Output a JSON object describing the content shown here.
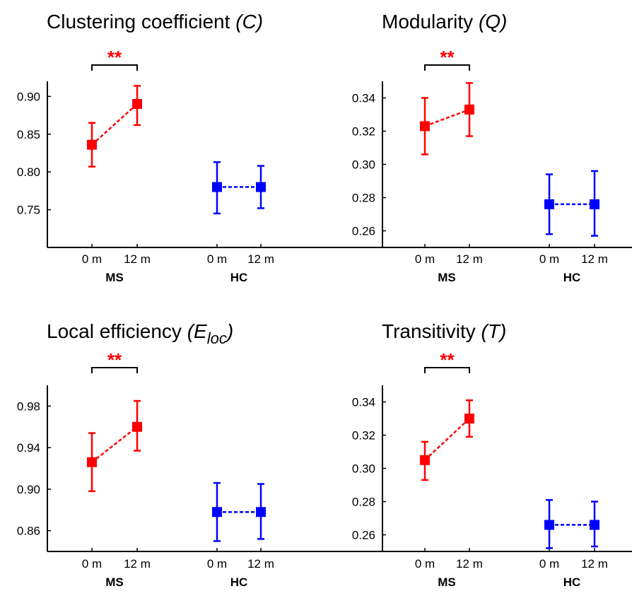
{
  "colors": {
    "ms": "#ff0000",
    "hc": "#0000ff",
    "axis": "#000000"
  },
  "chart_data": [
    {
      "type": "scatter",
      "title": "Clustering coefficient",
      "title_symbol": "(C)",
      "title_symbol_sub": "",
      "title_symbol_close": "",
      "categories": [
        "0 m",
        "12 m",
        "0 m",
        "12 m"
      ],
      "groups": [
        "MS",
        "HC"
      ],
      "ylim": [
        0.7,
        0.92
      ],
      "yticks": [
        0.75,
        0.8,
        0.85,
        0.9
      ],
      "ytick_labels": [
        "0.75",
        "0.80",
        "0.85",
        "0.90"
      ],
      "series": [
        {
          "name": "MS",
          "color": "#ff0000",
          "values": [
            0.836,
            0.89
          ],
          "err_low": [
            0.807,
            0.862
          ],
          "err_high": [
            0.865,
            0.914
          ]
        },
        {
          "name": "HC",
          "color": "#0000ff",
          "values": [
            0.78,
            0.78
          ],
          "err_low": [
            0.745,
            0.752
          ],
          "err_high": [
            0.813,
            0.808
          ]
        }
      ],
      "significance": {
        "label": "**",
        "between": [
          "0 m",
          "12 m"
        ],
        "group": "MS"
      }
    },
    {
      "type": "scatter",
      "title": "Modularity",
      "title_symbol": "(Q)",
      "title_symbol_sub": "",
      "title_symbol_close": "",
      "categories": [
        "0 m",
        "12 m",
        "0 m",
        "12 m"
      ],
      "groups": [
        "MS",
        "HC"
      ],
      "ylim": [
        0.25,
        0.35
      ],
      "yticks": [
        0.26,
        0.28,
        0.3,
        0.32,
        0.34
      ],
      "ytick_labels": [
        "0.26",
        "0.28",
        "0.30",
        "0.32",
        "0.34"
      ],
      "series": [
        {
          "name": "MS",
          "color": "#ff0000",
          "values": [
            0.323,
            0.333
          ],
          "err_low": [
            0.306,
            0.317
          ],
          "err_high": [
            0.34,
            0.349
          ]
        },
        {
          "name": "HC",
          "color": "#0000ff",
          "values": [
            0.276,
            0.276
          ],
          "err_low": [
            0.258,
            0.257
          ],
          "err_high": [
            0.294,
            0.296
          ]
        }
      ],
      "significance": {
        "label": "**",
        "between": [
          "0 m",
          "12 m"
        ],
        "group": "MS"
      }
    },
    {
      "type": "scatter",
      "title": "Local efficiency",
      "title_symbol": "(E",
      "title_symbol_sub": "loc",
      "title_symbol_close": ")",
      "categories": [
        "0 m",
        "12 m",
        "0 m",
        "12 m"
      ],
      "groups": [
        "MS",
        "HC"
      ],
      "ylim": [
        0.84,
        1.0
      ],
      "yticks": [
        0.86,
        0.9,
        0.94,
        0.98
      ],
      "ytick_labels": [
        "0.86",
        "0.90",
        "0.94",
        "0.98"
      ],
      "series": [
        {
          "name": "MS",
          "color": "#ff0000",
          "values": [
            0.926,
            0.96
          ],
          "err_low": [
            0.898,
            0.937
          ],
          "err_high": [
            0.954,
            0.985
          ]
        },
        {
          "name": "HC",
          "color": "#0000ff",
          "values": [
            0.878,
            0.878
          ],
          "err_low": [
            0.85,
            0.852
          ],
          "err_high": [
            0.906,
            0.905
          ]
        }
      ],
      "significance": {
        "label": "**",
        "between": [
          "0 m",
          "12 m"
        ],
        "group": "MS"
      }
    },
    {
      "type": "scatter",
      "title": "Transitivity",
      "title_symbol": "(T)",
      "title_symbol_sub": "",
      "title_symbol_close": "",
      "categories": [
        "0 m",
        "12 m",
        "0 m",
        "12 m"
      ],
      "groups": [
        "MS",
        "HC"
      ],
      "ylim": [
        0.25,
        0.35
      ],
      "yticks": [
        0.26,
        0.28,
        0.3,
        0.32,
        0.34
      ],
      "ytick_labels": [
        "0.26",
        "0.28",
        "0.30",
        "0.32",
        "0.34"
      ],
      "series": [
        {
          "name": "MS",
          "color": "#ff0000",
          "values": [
            0.305,
            0.33
          ],
          "err_low": [
            0.293,
            0.319
          ],
          "err_high": [
            0.316,
            0.341
          ]
        },
        {
          "name": "HC",
          "color": "#0000ff",
          "values": [
            0.266,
            0.266
          ],
          "err_low": [
            0.252,
            0.253
          ],
          "err_high": [
            0.281,
            0.28
          ]
        }
      ],
      "significance": {
        "label": "**",
        "between": [
          "0 m",
          "12 m"
        ],
        "group": "MS"
      }
    }
  ]
}
